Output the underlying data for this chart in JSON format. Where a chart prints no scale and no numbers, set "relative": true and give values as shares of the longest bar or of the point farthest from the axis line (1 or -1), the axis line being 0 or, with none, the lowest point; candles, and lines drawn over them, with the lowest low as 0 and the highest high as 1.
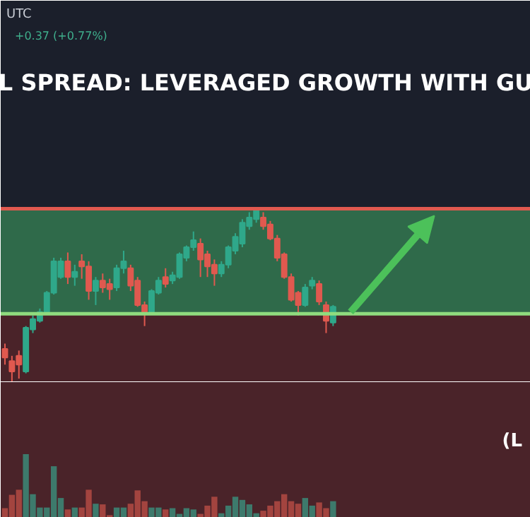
{
  "chart_data": [
    {
      "type": "candlestick",
      "relative": true,
      "title": "L SPREAD: LEVERAGED GROWTH WITH GU",
      "annotations": [
        "UTC",
        "+0.37 (+0.77%)"
      ],
      "categories": [
        null,
        null,
        null,
        null,
        null,
        null,
        null,
        null,
        null,
        null,
        null,
        null,
        null,
        null,
        null,
        null,
        null,
        null,
        null,
        null,
        null,
        null,
        null,
        null,
        null,
        null,
        null,
        null,
        null,
        null,
        null,
        null,
        null,
        null,
        null,
        null,
        null,
        null,
        null,
        null,
        null,
        null,
        null,
        null,
        null,
        null,
        null,
        null
      ],
      "ohlc": [
        [
          0.19,
          0.22,
          0.1,
          0.14
        ],
        [
          0.12,
          0.15,
          0,
          0.06
        ],
        [
          0.15,
          0.18,
          0.02,
          0.1
        ],
        [
          0.06,
          0.32,
          0.05,
          0.31
        ],
        [
          0.3,
          0.38,
          0.28,
          0.36
        ],
        [
          0.35,
          0.42,
          0.34,
          0.4
        ],
        [
          0.4,
          0.52,
          0.39,
          0.51
        ],
        [
          0.51,
          0.71,
          0.5,
          0.69
        ],
        [
          0.6,
          0.71,
          0.59,
          0.69
        ],
        [
          0.69,
          0.74,
          0.56,
          0.6
        ],
        [
          0.6,
          0.67,
          0.55,
          0.63
        ],
        [
          0.69,
          0.73,
          0.59,
          0.66
        ],
        [
          0.66,
          0.69,
          0.47,
          0.52
        ],
        [
          0.52,
          0.6,
          0.44,
          0.58
        ],
        [
          0.58,
          0.62,
          0.51,
          0.54
        ],
        [
          0.56,
          0.59,
          0.47,
          0.53
        ],
        [
          0.54,
          0.67,
          0.52,
          0.65
        ],
        [
          0.65,
          0.75,
          0.62,
          0.69
        ],
        [
          0.65,
          0.67,
          0.52,
          0.55
        ],
        [
          0.58,
          0.6,
          0.43,
          0.44
        ],
        [
          0.44,
          0.46,
          0.32,
          0.4
        ],
        [
          0.4,
          0.53,
          0.39,
          0.52
        ],
        [
          0.51,
          0.6,
          0.5,
          0.58
        ],
        [
          0.6,
          0.65,
          0.54,
          0.56
        ],
        [
          0.58,
          0.63,
          0.56,
          0.61
        ],
        [
          0.6,
          0.74,
          0.59,
          0.73
        ],
        [
          0.71,
          0.78,
          0.69,
          0.77
        ],
        [
          0.77,
          0.86,
          0.75,
          0.81
        ],
        [
          0.79,
          0.82,
          0.6,
          0.7
        ],
        [
          0.73,
          0.75,
          0.6,
          0.66
        ],
        [
          0.67,
          0.7,
          0.55,
          0.62
        ],
        [
          0.62,
          0.69,
          0.6,
          0.67
        ],
        [
          0.67,
          0.78,
          0.65,
          0.77
        ],
        [
          0.75,
          0.85,
          0.73,
          0.83
        ],
        [
          0.79,
          0.93,
          0.77,
          0.91
        ],
        [
          0.89,
          0.97,
          0.87,
          0.94
        ],
        [
          0.93,
          1.0,
          0.91,
          0.98
        ],
        [
          0.94,
          0.97,
          0.87,
          0.89
        ],
        [
          0.9,
          0.92,
          0.81,
          0.82
        ],
        [
          0.82,
          0.84,
          0.69,
          0.71
        ],
        [
          0.73,
          0.74,
          0.59,
          0.6
        ],
        [
          0.6,
          0.62,
          0.46,
          0.47
        ],
        [
          0.51,
          0.52,
          0.38,
          0.44
        ],
        [
          0.44,
          0.56,
          0.43,
          0.54
        ],
        [
          0.55,
          0.6,
          0.53,
          0.58
        ],
        [
          0.56,
          0.58,
          0.44,
          0.46
        ],
        [
          0.44,
          0.46,
          0.28,
          0.35
        ],
        [
          0.34,
          0.44,
          0.32,
          0.43
        ]
      ],
      "bands": [
        {
          "axis": "y",
          "from": 0.39,
          "to": 0.99,
          "color": "#2f6a4a"
        },
        {
          "axis": "y",
          "from": 0,
          "to": 0.39,
          "color": "#4a2329"
        }
      ],
      "ref_lines": [
        {
          "axis": "y",
          "value": 0.39,
          "color": "#8fdc7e"
        },
        {
          "axis": "y",
          "value": 0.99,
          "color": "#e0594f"
        }
      ]
    },
    {
      "type": "bar",
      "relative": true,
      "annotations": [
        "(L"
      ],
      "categories": [
        null,
        null,
        null,
        null,
        null,
        null,
        null,
        null,
        null,
        null,
        null,
        null,
        null,
        null,
        null,
        null,
        null,
        null,
        null,
        null,
        null,
        null,
        null,
        null,
        null,
        null,
        null,
        null,
        null,
        null,
        null,
        null,
        null,
        null,
        null,
        null,
        null,
        null,
        null,
        null,
        null,
        null,
        null,
        null,
        null,
        null,
        null,
        null
      ],
      "values": [
        0.15,
        0.36,
        0.44,
        1,
        0.37,
        0.16,
        0.16,
        0.81,
        0.31,
        0.13,
        0.16,
        0.16,
        0.44,
        0.22,
        0.21,
        0.04,
        0.16,
        0.16,
        0.22,
        0.43,
        0.26,
        0.16,
        0.16,
        0.13,
        0.15,
        0.06,
        0.15,
        0.13,
        0.06,
        0.19,
        0.33,
        0.07,
        0.19,
        0.33,
        0.28,
        0.21,
        0.07,
        0.11,
        0.19,
        0.26,
        0.37,
        0.26,
        0.22,
        0.31,
        0.19,
        0.24,
        0.15,
        0.26
      ],
      "colors": [
        "#a3443f",
        "#a3443f",
        "#a3443f",
        "#3d7a6c",
        "#3d7a6c",
        "#3d7a6c",
        "#3d7a6c",
        "#3d7a6c",
        "#3d7a6c",
        "#a3443f",
        "#3d7a6c",
        "#a3443f",
        "#a3443f",
        "#3d7a6c",
        "#a3443f",
        "#a3443f",
        "#3d7a6c",
        "#3d7a6c",
        "#a3443f",
        "#a3443f",
        "#a3443f",
        "#3d7a6c",
        "#3d7a6c",
        "#a3443f",
        "#3d7a6c",
        "#3d7a6c",
        "#3d7a6c",
        "#3d7a6c",
        "#a3443f",
        "#a3443f",
        "#a3443f",
        "#3d7a6c",
        "#3d7a6c",
        "#3d7a6c",
        "#3d7a6c",
        "#3d7a6c",
        "#3d7a6c",
        "#a3443f",
        "#a3443f",
        "#a3443f",
        "#a3443f",
        "#a3443f",
        "#a3443f",
        "#3d7a6c",
        "#3d7a6c",
        "#a3443f",
        "#a3443f",
        "#3d7a6c"
      ]
    }
  ]
}
